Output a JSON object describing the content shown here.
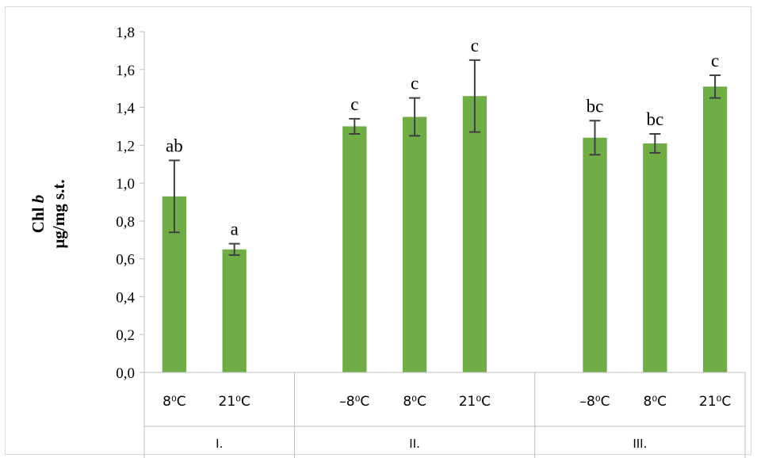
{
  "chart_data": {
    "type": "bar",
    "ylabel_line1": "Chl",
    "ylabel_italic": "b",
    "ylabel_line2": "µg/mg s.t.",
    "ylim": [
      0,
      1.8
    ],
    "y_ticks": [
      "0,0",
      "0,2",
      "0,4",
      "0,6",
      "0,8",
      "1,0",
      "1,2",
      "1,4",
      "1,6",
      "1,8"
    ],
    "grid": false,
    "bar_color": "#70ad47",
    "groups": [
      {
        "label": "I.",
        "categories": [
          "8⁰C",
          "21⁰C"
        ],
        "values": [
          0.93,
          0.65
        ],
        "errors": [
          0.19,
          0.03
        ],
        "letters": [
          "ab",
          "a"
        ]
      },
      {
        "label": "II.",
        "categories": [
          "–8⁰C",
          "8⁰C",
          "21⁰C"
        ],
        "values": [
          1.3,
          1.35,
          1.46
        ],
        "errors": [
          0.04,
          0.1,
          0.19
        ],
        "letters": [
          "c",
          "c",
          "c"
        ]
      },
      {
        "label": "III.",
        "categories": [
          "–8⁰C",
          "8⁰C",
          "21⁰C"
        ],
        "values": [
          1.24,
          1.21,
          1.51
        ],
        "errors": [
          0.09,
          0.05,
          0.06
        ],
        "letters": [
          "bc",
          "bc",
          "c"
        ]
      }
    ]
  }
}
